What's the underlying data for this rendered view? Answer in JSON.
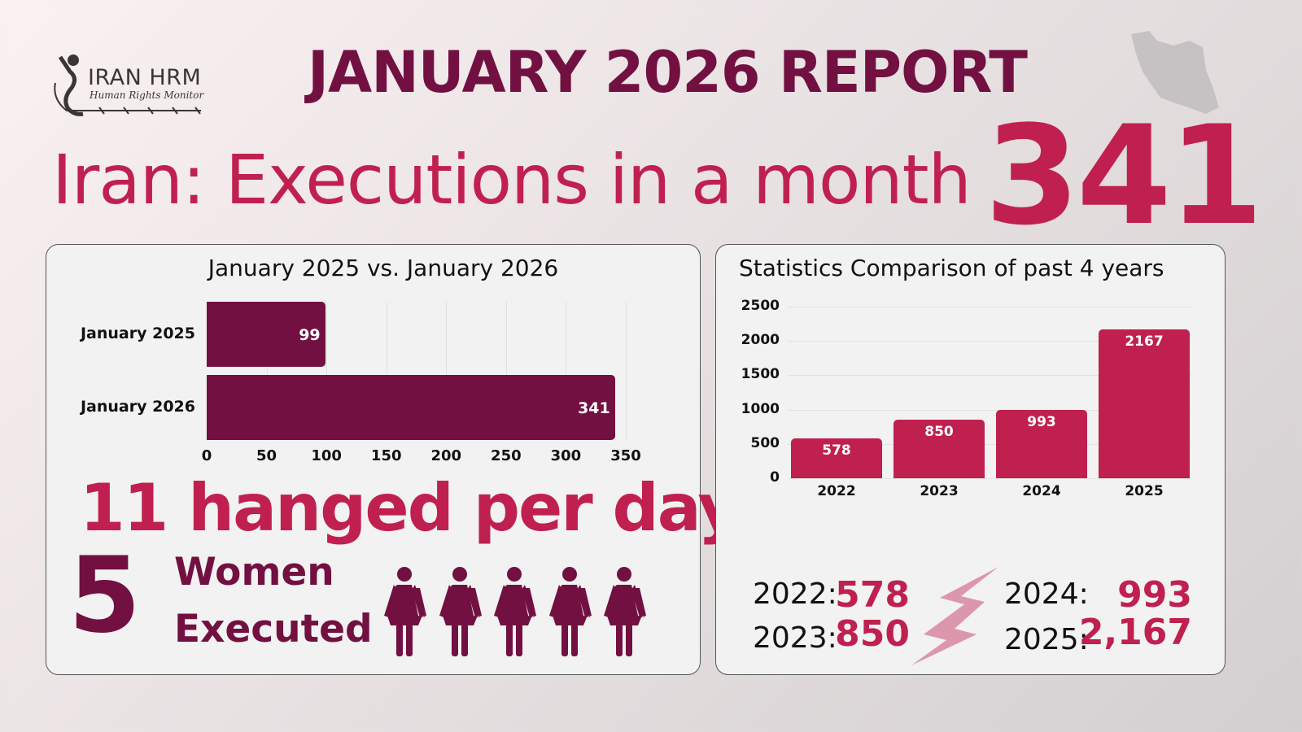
{
  "logo": {
    "title": "IRAN HRM",
    "subtitle": "Human Rights Monitor"
  },
  "header": {
    "title": "JANUARY 2026 REPORT",
    "subtitle": "Iran: Executions in a month",
    "big_number": "341"
  },
  "colors": {
    "maroon": "#721041",
    "crimson": "#c0204f",
    "panel": "#f1f2f1"
  },
  "chart_data": [
    {
      "type": "bar",
      "orientation": "horizontal",
      "title": "January 2025 vs. January 2026",
      "categories": [
        "January 2025",
        "January 2026"
      ],
      "values": [
        99,
        341
      ],
      "xlim": [
        0,
        350
      ],
      "xticks": [
        "0",
        "50",
        "100",
        "150",
        "200",
        "250",
        "300",
        "350"
      ],
      "grid": true
    },
    {
      "type": "bar",
      "orientation": "vertical",
      "title": "Statistics Comparison of past 4 years",
      "categories": [
        "2022",
        "2023",
        "2024",
        "2025"
      ],
      "values": [
        578,
        850,
        993,
        2167
      ],
      "ylim": [
        0,
        2500
      ],
      "yticks": [
        "0",
        "500",
        "1000",
        "1500",
        "2000",
        "2500"
      ],
      "grid": true
    }
  ],
  "stats": {
    "per_day": "11 hanged per day",
    "women_count": "5",
    "women_line1": "Women",
    "women_line2": "Executed",
    "women_icons": 5
  },
  "yearly": [
    {
      "year": "2022:",
      "value": "578"
    },
    {
      "year": "2023:",
      "value": "850"
    },
    {
      "year": "2024:",
      "value": "993"
    },
    {
      "year": "2025:",
      "value": "2,167"
    }
  ]
}
